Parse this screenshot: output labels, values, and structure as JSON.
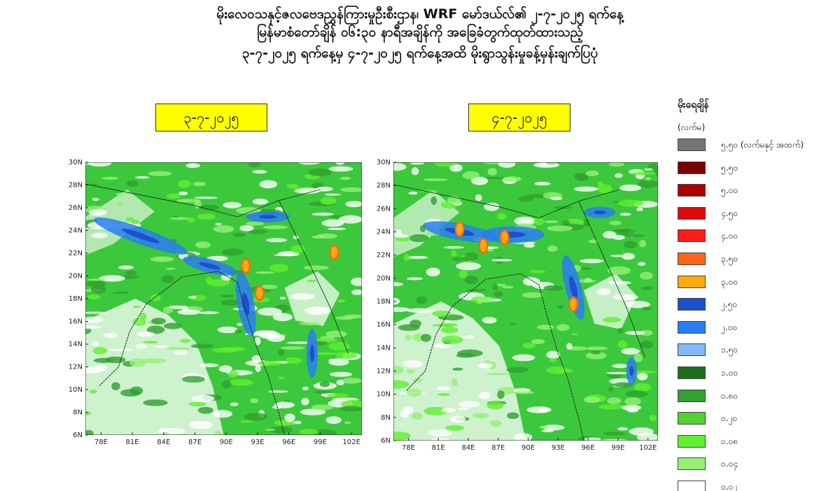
{
  "header": {
    "title_lines": [
      "မိုးလေဝသနှင့်ဇလဗေဒညွှန်ကြားမှုဦးစီးဌာန၊ WRF မော်ဒယ်လ်၏ ၂-၇-၂၀၂၅ ရက်နေ့",
      "မြန်မာစံတော်ချိန် ၀၆:၃၀ နာရီအချိန်ကို အခြေခံတွက်ထုတ်ထားသည့်",
      "၃-၇-၂၀၂၅ ရက်နေ့မှ ၄-၇-၂၀၂၅ ရက်နေ့အထိ မိုးရွာသွန်းမှုခန့်မှန်းချက်ပြပုံ"
    ]
  },
  "panels": [
    {
      "date": "၃-၇-၂၀၂၅"
    },
    {
      "date": "၄-၇-၂၀၂၅"
    }
  ],
  "map_axes": {
    "lat_labels": [
      "30N",
      "28N",
      "26N",
      "24N",
      "22N",
      "20N",
      "18N",
      "16N",
      "14N",
      "12N",
      "10N",
      "8N",
      "6N"
    ],
    "lon_labels": [
      "78E",
      "81E",
      "84E",
      "87E",
      "90E",
      "93E",
      "96E",
      "99E",
      "102E"
    ]
  },
  "legend": {
    "title": "မိုးရေချိန်",
    "unit": "(လက်မ)",
    "items": [
      {
        "label": "၅.၅၀ (လက်မနှင့် အထက်)",
        "color": "#767676"
      },
      {
        "label": "၅.၅၀",
        "color": "#7a0000"
      },
      {
        "label": "၅.၀၀",
        "color": "#b00000"
      },
      {
        "label": "၄.၅၀",
        "color": "#e00a0a"
      },
      {
        "label": "၄.၀၀",
        "color": "#ff1a1a"
      },
      {
        "label": "၃.၅၀",
        "color": "#ff6414"
      },
      {
        "label": "၃.၀၀",
        "color": "#ffaa10"
      },
      {
        "label": "၂.၅၀",
        "color": "#1c50d0"
      },
      {
        "label": "၂.၀၀",
        "color": "#2a7cf0"
      },
      {
        "label": "၁.၅၀",
        "color": "#80b8f8"
      },
      {
        "label": "၁.၀၀",
        "color": "#1e6e1e"
      },
      {
        "label": "၀.၈၀",
        "color": "#32a032"
      },
      {
        "label": "၀.၂၀",
        "color": "#50d232"
      },
      {
        "label": "၀.၀၈",
        "color": "#60f030"
      },
      {
        "label": "၀.၀၄",
        "color": "#96f078"
      },
      {
        "label": "၀.၀၂",
        "color": "#ffffff"
      }
    ]
  }
}
